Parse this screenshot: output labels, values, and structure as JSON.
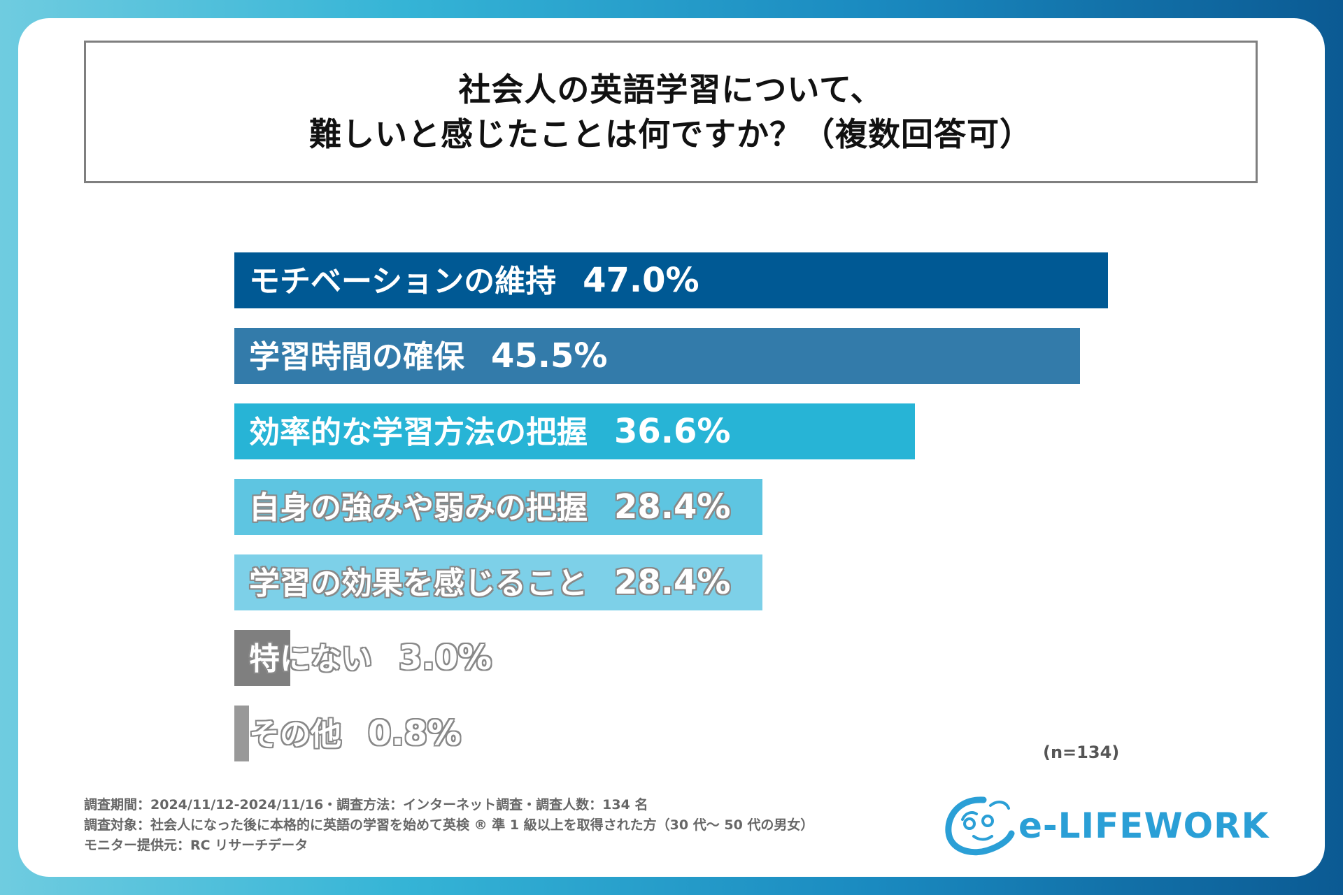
{
  "title": {
    "line1": "社会人の英語学習について、",
    "line2": "難しいと感じたことは何ですか？（複数回答可）"
  },
  "chart_data": {
    "type": "bar",
    "orientation": "horizontal",
    "categories": [
      "モチベーションの維持",
      "学習時間の確保",
      "効率的な学習方法の把握",
      "自身の強みや弱みの把握",
      "学習の効果を感じること",
      "特にない",
      "その他"
    ],
    "values": [
      47.0,
      45.5,
      36.6,
      28.4,
      28.4,
      3.0,
      0.8
    ],
    "value_labels": [
      "47.0%",
      "45.5%",
      "36.6%",
      "28.4%",
      "28.4%",
      "3.0%",
      "0.8%"
    ],
    "colors": [
      "#005994",
      "#337baa",
      "#27b4d6",
      "#5ec5e1",
      "#7dd0e8",
      "#7f7f7f",
      "#999999"
    ],
    "outlined_labels": [
      false,
      false,
      false,
      true,
      true,
      true,
      true
    ],
    "xlim": [
      0,
      47.0
    ],
    "unit": "%"
  },
  "sample_note": "(n=134)",
  "footer": {
    "line1": "調査期間：2024/11/12-2024/11/16・調査方法：インターネット調査・調査人数：134 名",
    "line2": "調査対象：社会人になった後に本格的に英語の学習を始めて英検 ® 準 1 級以上を取得された方（30 代～ 50 代の男女）",
    "line3": "モニター提供元：RC リサーチデータ"
  },
  "logo": {
    "text": "e-LIFEWORK",
    "color": "#2a9fd6"
  }
}
